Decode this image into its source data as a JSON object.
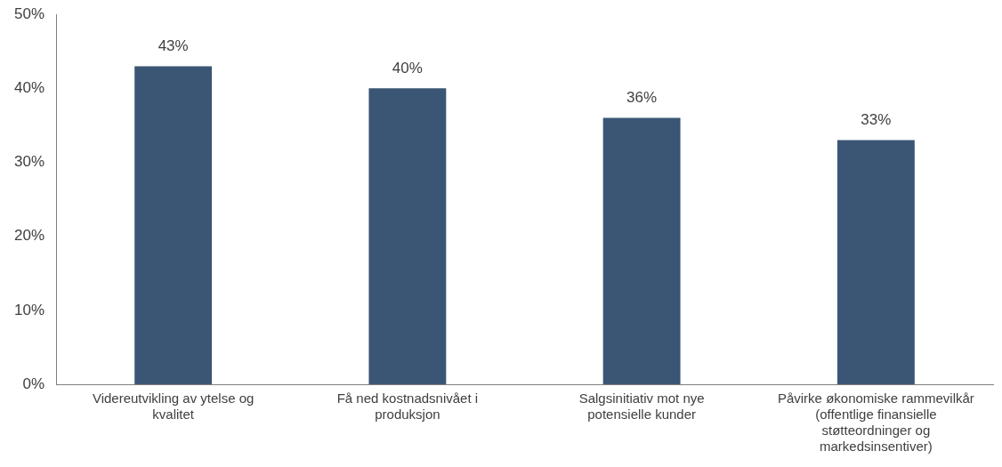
{
  "chart_data": {
    "type": "bar",
    "categories": [
      "Videreutvikling av ytelse og kvalitet",
      "Få ned kostnadsnivået i produksjon",
      "Salgsinitiativ mot nye potensielle kunder",
      "Påvirke økonomiske rammevilkår (offentlige finansielle støtteordninger og markedsinsentiver)"
    ],
    "values": [
      43,
      40,
      36,
      33
    ],
    "value_labels": [
      "43%",
      "40%",
      "36%",
      "33%"
    ],
    "color": "#3a5674",
    "ylim": [
      0,
      50
    ],
    "yticks": [
      {
        "value": 0,
        "label": "0%"
      },
      {
        "value": 10,
        "label": "10%"
      },
      {
        "value": 20,
        "label": "20%"
      },
      {
        "value": 30,
        "label": "30%"
      },
      {
        "value": 40,
        "label": "40%"
      },
      {
        "value": 50,
        "label": "50%"
      }
    ],
    "grid": false,
    "legend": false
  }
}
